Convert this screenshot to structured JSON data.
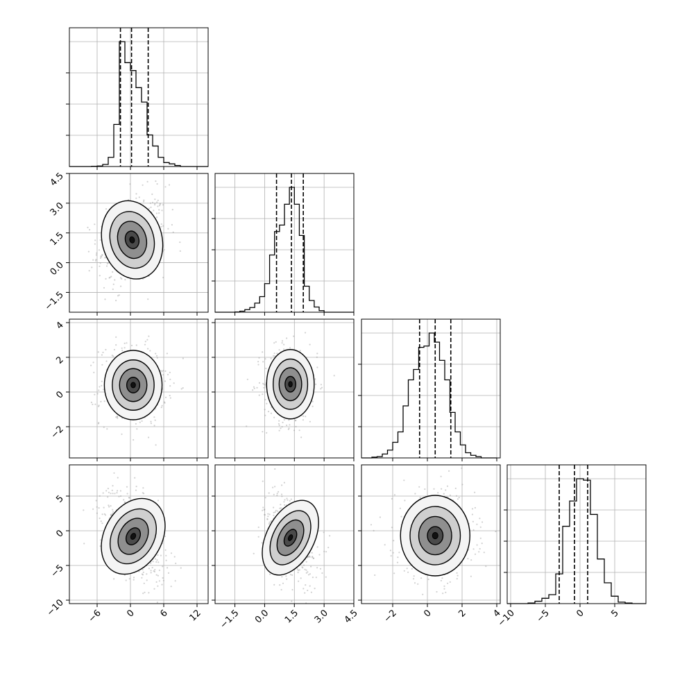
{
  "chart_data": {
    "type": "corner",
    "num_params": 4,
    "grid": true,
    "dim_ranges": [
      [
        -11,
        14
      ],
      [
        -2.5,
        4.5
      ],
      [
        -3.8,
        4.2
      ],
      [
        -10.5,
        9.5
      ]
    ],
    "ticks": [
      [
        "−6",
        "0",
        "6",
        "12"
      ],
      [
        "−1.5",
        "0.0",
        "1.5",
        "3.0",
        "4.5"
      ],
      [
        "−2",
        "0",
        "2",
        "4"
      ],
      [
        "−10",
        "−5",
        "0",
        "5"
      ]
    ],
    "tick_values": [
      [
        -6,
        0,
        6,
        12
      ],
      [
        -1.5,
        0.0,
        1.5,
        3.0,
        4.5
      ],
      [
        -2,
        0,
        2,
        4
      ],
      [
        -10,
        -5,
        0,
        5
      ]
    ],
    "quantiles": [
      [
        -1.8,
        0.2,
        3.2
      ],
      [
        0.6,
        1.35,
        1.95
      ],
      [
        -0.45,
        0.45,
        1.35
      ],
      [
        -3.0,
        -0.8,
        1.1
      ]
    ],
    "histograms": [
      {
        "bin_edges": [
          -11,
          -10,
          -9,
          -8,
          -7,
          -6,
          -5,
          -4,
          -3,
          -2,
          -1,
          0,
          1,
          2,
          3,
          4,
          5,
          6,
          7,
          8,
          9,
          10,
          11,
          12,
          13,
          14
        ],
        "counts": [
          0,
          0,
          0,
          0,
          1,
          2,
          8,
          35,
          160,
          475,
          395,
          365,
          300,
          245,
          120,
          78,
          35,
          15,
          10,
          4,
          0,
          0,
          0,
          0,
          0
        ]
      },
      {
        "bin_edges": [
          -2.5,
          -2.25,
          -2.0,
          -1.75,
          -1.5,
          -1.25,
          -1.0,
          -0.75,
          -0.5,
          -0.25,
          0.0,
          0.25,
          0.5,
          0.75,
          1.0,
          1.25,
          1.5,
          1.75,
          2.0,
          2.25,
          2.5,
          2.75,
          3.0,
          3.25,
          3.5,
          3.75,
          4.0,
          4.25,
          4.5
        ],
        "counts": [
          0,
          0,
          0,
          0,
          1,
          4,
          10,
          18,
          35,
          60,
          110,
          220,
          310,
          335,
          415,
          480,
          415,
          295,
          100,
          45,
          20,
          6,
          0,
          0,
          0,
          0,
          0,
          0
        ]
      },
      {
        "bin_edges": [
          -3.8,
          -3.5,
          -3.2,
          -2.9,
          -2.6,
          -2.3,
          -2.0,
          -1.7,
          -1.4,
          -1.1,
          -0.8,
          -0.5,
          -0.2,
          0.1,
          0.4,
          0.7,
          1.0,
          1.3,
          1.6,
          1.9,
          2.2,
          2.5,
          2.8,
          3.1,
          3.4,
          3.7,
          4.0
        ],
        "counts": [
          0,
          0,
          3,
          5,
          15,
          30,
          60,
          100,
          200,
          300,
          340,
          425,
          430,
          480,
          445,
          375,
          300,
          175,
          100,
          50,
          20,
          10,
          5,
          0,
          0,
          0
        ]
      },
      {
        "bin_edges": [
          -10.5,
          -9.5,
          -8.5,
          -7.5,
          -6.5,
          -5.5,
          -4.5,
          -3.5,
          -2.5,
          -1.5,
          -0.5,
          0.5,
          1.5,
          2.5,
          3.5,
          4.5,
          5.5,
          6.5,
          7.5,
          8.5,
          9.5
        ],
        "counts": [
          0,
          0,
          0,
          2,
          8,
          18,
          30,
          100,
          260,
          345,
          420,
          415,
          300,
          150,
          70,
          25,
          5,
          2,
          0,
          0
        ]
      }
    ],
    "pairs": [
      {
        "x": 0,
        "y": 1,
        "mean": [
          0.3,
          1.15
        ],
        "sd": [
          2.7,
          1.0
        ],
        "rho": 0.22
      },
      {
        "x": 0,
        "y": 2,
        "mean": [
          0.5,
          0.4
        ],
        "sd": [
          2.6,
          1.0
        ],
        "rho": 0.0
      },
      {
        "x": 1,
        "y": 2,
        "mean": [
          1.3,
          0.45
        ],
        "sd": [
          0.6,
          1.0
        ],
        "rho": 0.0
      },
      {
        "x": 0,
        "y": 3,
        "mean": [
          0.5,
          -0.8
        ],
        "sd": [
          2.6,
          2.9
        ],
        "rho": -0.45
      },
      {
        "x": 1,
        "y": 3,
        "mean": [
          1.3,
          -1.0
        ],
        "sd": [
          0.6,
          2.9
        ],
        "rho": -0.35
      },
      {
        "x": 2,
        "y": 3,
        "mean": [
          0.45,
          -0.7
        ],
        "sd": [
          1.0,
          2.9
        ],
        "rho": 0.0
      }
    ]
  }
}
